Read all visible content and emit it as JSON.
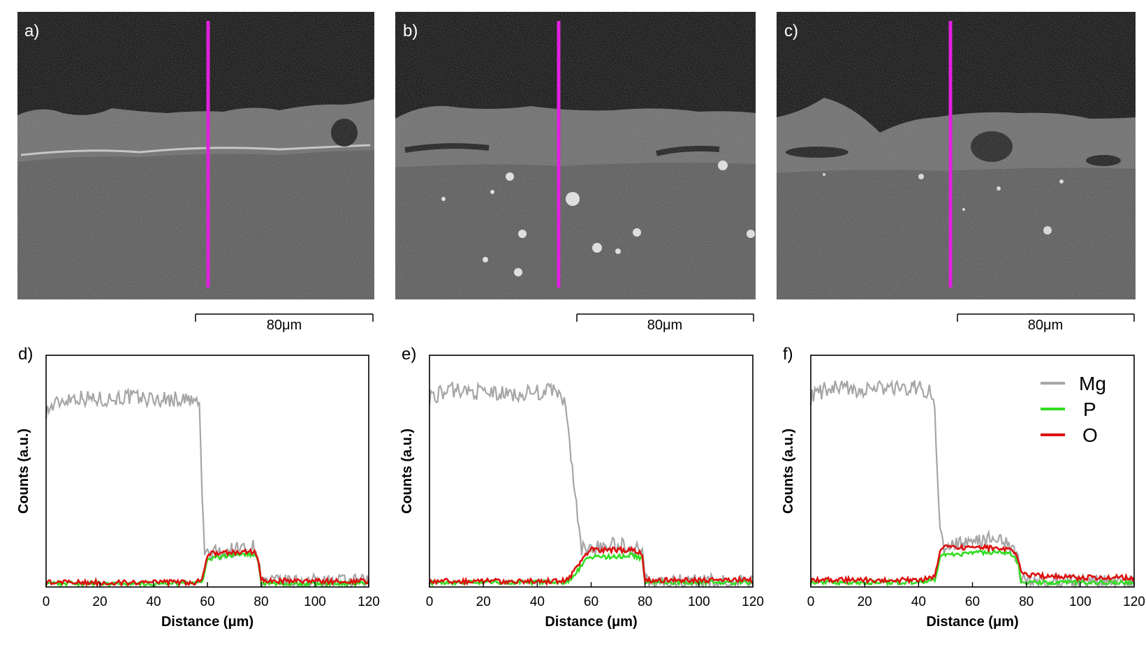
{
  "sem_panels": [
    {
      "label": "a)",
      "scale_bar": "80μm"
    },
    {
      "label": "b)",
      "scale_bar": "80μm"
    },
    {
      "label": "c)",
      "scale_bar": "80μm"
    }
  ],
  "legend": [
    {
      "name": "Mg",
      "color": "#a6a6a6"
    },
    {
      "name": "P",
      "color": "#33dd22"
    },
    {
      "name": "O",
      "color": "#dd1111"
    }
  ],
  "chart_data": [
    {
      "type": "line",
      "label": "d)",
      "xlabel": "Distance (μm)",
      "ylabel": "Counts (a.u.)",
      "xlim": [
        0,
        120
      ],
      "ylim": [
        0,
        100
      ],
      "xticks": [
        0,
        20,
        40,
        60,
        80,
        100,
        120
      ],
      "yticks_shown": false,
      "grid": false,
      "series": [
        {
          "name": "Mg",
          "color": "#a6a6a6",
          "x": [
            0,
            5,
            10,
            20,
            30,
            40,
            50,
            55,
            57,
            58,
            59,
            60,
            65,
            70,
            75,
            78,
            79,
            80,
            90,
            100,
            110,
            120
          ],
          "y": [
            76,
            80,
            82,
            81,
            82,
            81,
            81,
            80,
            79,
            40,
            15,
            14,
            15,
            16,
            17,
            17,
            12,
            2,
            2,
            2,
            2,
            2
          ]
        },
        {
          "name": "P",
          "color": "#33dd22",
          "x": [
            0,
            10,
            20,
            30,
            40,
            50,
            55,
            58,
            60,
            65,
            70,
            75,
            78,
            79,
            80,
            90,
            100,
            110,
            120
          ],
          "y": [
            1.5,
            1.5,
            1.5,
            1.5,
            1.5,
            1.5,
            1.5,
            2,
            12,
            13,
            14,
            14,
            14,
            10,
            1.5,
            1.5,
            1.5,
            1.5,
            1.5
          ]
        },
        {
          "name": "O",
          "color": "#dd1111",
          "x": [
            0,
            10,
            20,
            30,
            40,
            50,
            55,
            58,
            60,
            65,
            70,
            75,
            78,
            79,
            80,
            90,
            100,
            110,
            120
          ],
          "y": [
            2,
            2,
            2,
            2,
            2,
            2,
            2,
            3,
            14,
            15,
            15,
            15,
            15,
            12,
            3,
            2.5,
            2.5,
            2.5,
            2.5
          ]
        }
      ]
    },
    {
      "type": "line",
      "label": "e)",
      "xlabel": "Distance (μm)",
      "ylabel": "Counts (a.u.)",
      "xlim": [
        0,
        120
      ],
      "ylim": [
        0,
        100
      ],
      "xticks": [
        0,
        20,
        40,
        60,
        80,
        100,
        120
      ],
      "yticks_shown": false,
      "grid": false,
      "series": [
        {
          "name": "Mg",
          "color": "#a6a6a6",
          "x": [
            0,
            5,
            10,
            20,
            30,
            40,
            45,
            48,
            50,
            52,
            55,
            56,
            57,
            60,
            65,
            70,
            75,
            79,
            80,
            90,
            100,
            110,
            120
          ],
          "y": [
            82,
            84,
            85,
            84,
            83,
            84,
            85,
            83,
            80,
            62,
            30,
            18,
            16,
            17,
            18,
            18,
            17,
            16,
            2,
            2,
            2,
            2,
            2
          ]
        },
        {
          "name": "P",
          "color": "#33dd22",
          "x": [
            0,
            10,
            20,
            30,
            40,
            50,
            52,
            55,
            58,
            60,
            65,
            70,
            75,
            79,
            80,
            90,
            100,
            110,
            120
          ],
          "y": [
            2,
            2,
            2,
            2,
            2,
            2,
            3,
            7,
            12,
            13,
            13,
            13,
            14,
            12,
            2,
            2,
            2,
            2,
            2
          ]
        },
        {
          "name": "O",
          "color": "#dd1111",
          "x": [
            0,
            10,
            20,
            30,
            40,
            50,
            52,
            55,
            58,
            60,
            65,
            70,
            75,
            79,
            80,
            90,
            100,
            110,
            120
          ],
          "y": [
            2.5,
            2.5,
            2.5,
            2.5,
            2.5,
            2.5,
            4,
            9,
            14,
            16,
            16,
            16,
            16,
            14,
            3,
            3,
            3,
            3,
            3
          ]
        }
      ]
    },
    {
      "type": "line",
      "label": "f)",
      "xlabel": "Distance (μm)",
      "ylabel": "Counts (a.u.)",
      "xlim": [
        0,
        120
      ],
      "ylim": [
        0,
        100
      ],
      "xticks": [
        0,
        20,
        40,
        60,
        80,
        100,
        120
      ],
      "yticks_shown": false,
      "grid": false,
      "legend": "top-right",
      "series": [
        {
          "name": "Mg",
          "color": "#a6a6a6",
          "x": [
            0,
            5,
            10,
            20,
            30,
            40,
            45,
            46,
            47,
            48,
            49,
            50,
            55,
            60,
            65,
            70,
            75,
            77,
            78,
            80,
            90,
            100,
            110,
            120
          ],
          "y": [
            82,
            85,
            86,
            85,
            86,
            86,
            84,
            75,
            45,
            25,
            18,
            17,
            18,
            19,
            21,
            20,
            16,
            12,
            4,
            2,
            2,
            2,
            2,
            2
          ]
        },
        {
          "name": "P",
          "color": "#33dd22",
          "x": [
            0,
            10,
            20,
            30,
            40,
            46,
            48,
            50,
            55,
            60,
            65,
            70,
            75,
            77,
            78,
            80,
            90,
            100,
            110,
            120
          ],
          "y": [
            2,
            2,
            2,
            2,
            2,
            3,
            13,
            14,
            14,
            15,
            15,
            15,
            14,
            10,
            3,
            2,
            2,
            2,
            2,
            2
          ]
        },
        {
          "name": "O",
          "color": "#dd1111",
          "x": [
            0,
            10,
            20,
            30,
            40,
            46,
            48,
            50,
            55,
            60,
            65,
            70,
            75,
            77,
            78,
            80,
            90,
            100,
            110,
            120
          ],
          "y": [
            3,
            3,
            3,
            3,
            3,
            4,
            16,
            17,
            17,
            17,
            17,
            17,
            16,
            12,
            6,
            5,
            4.5,
            4,
            4,
            4
          ]
        }
      ]
    }
  ]
}
